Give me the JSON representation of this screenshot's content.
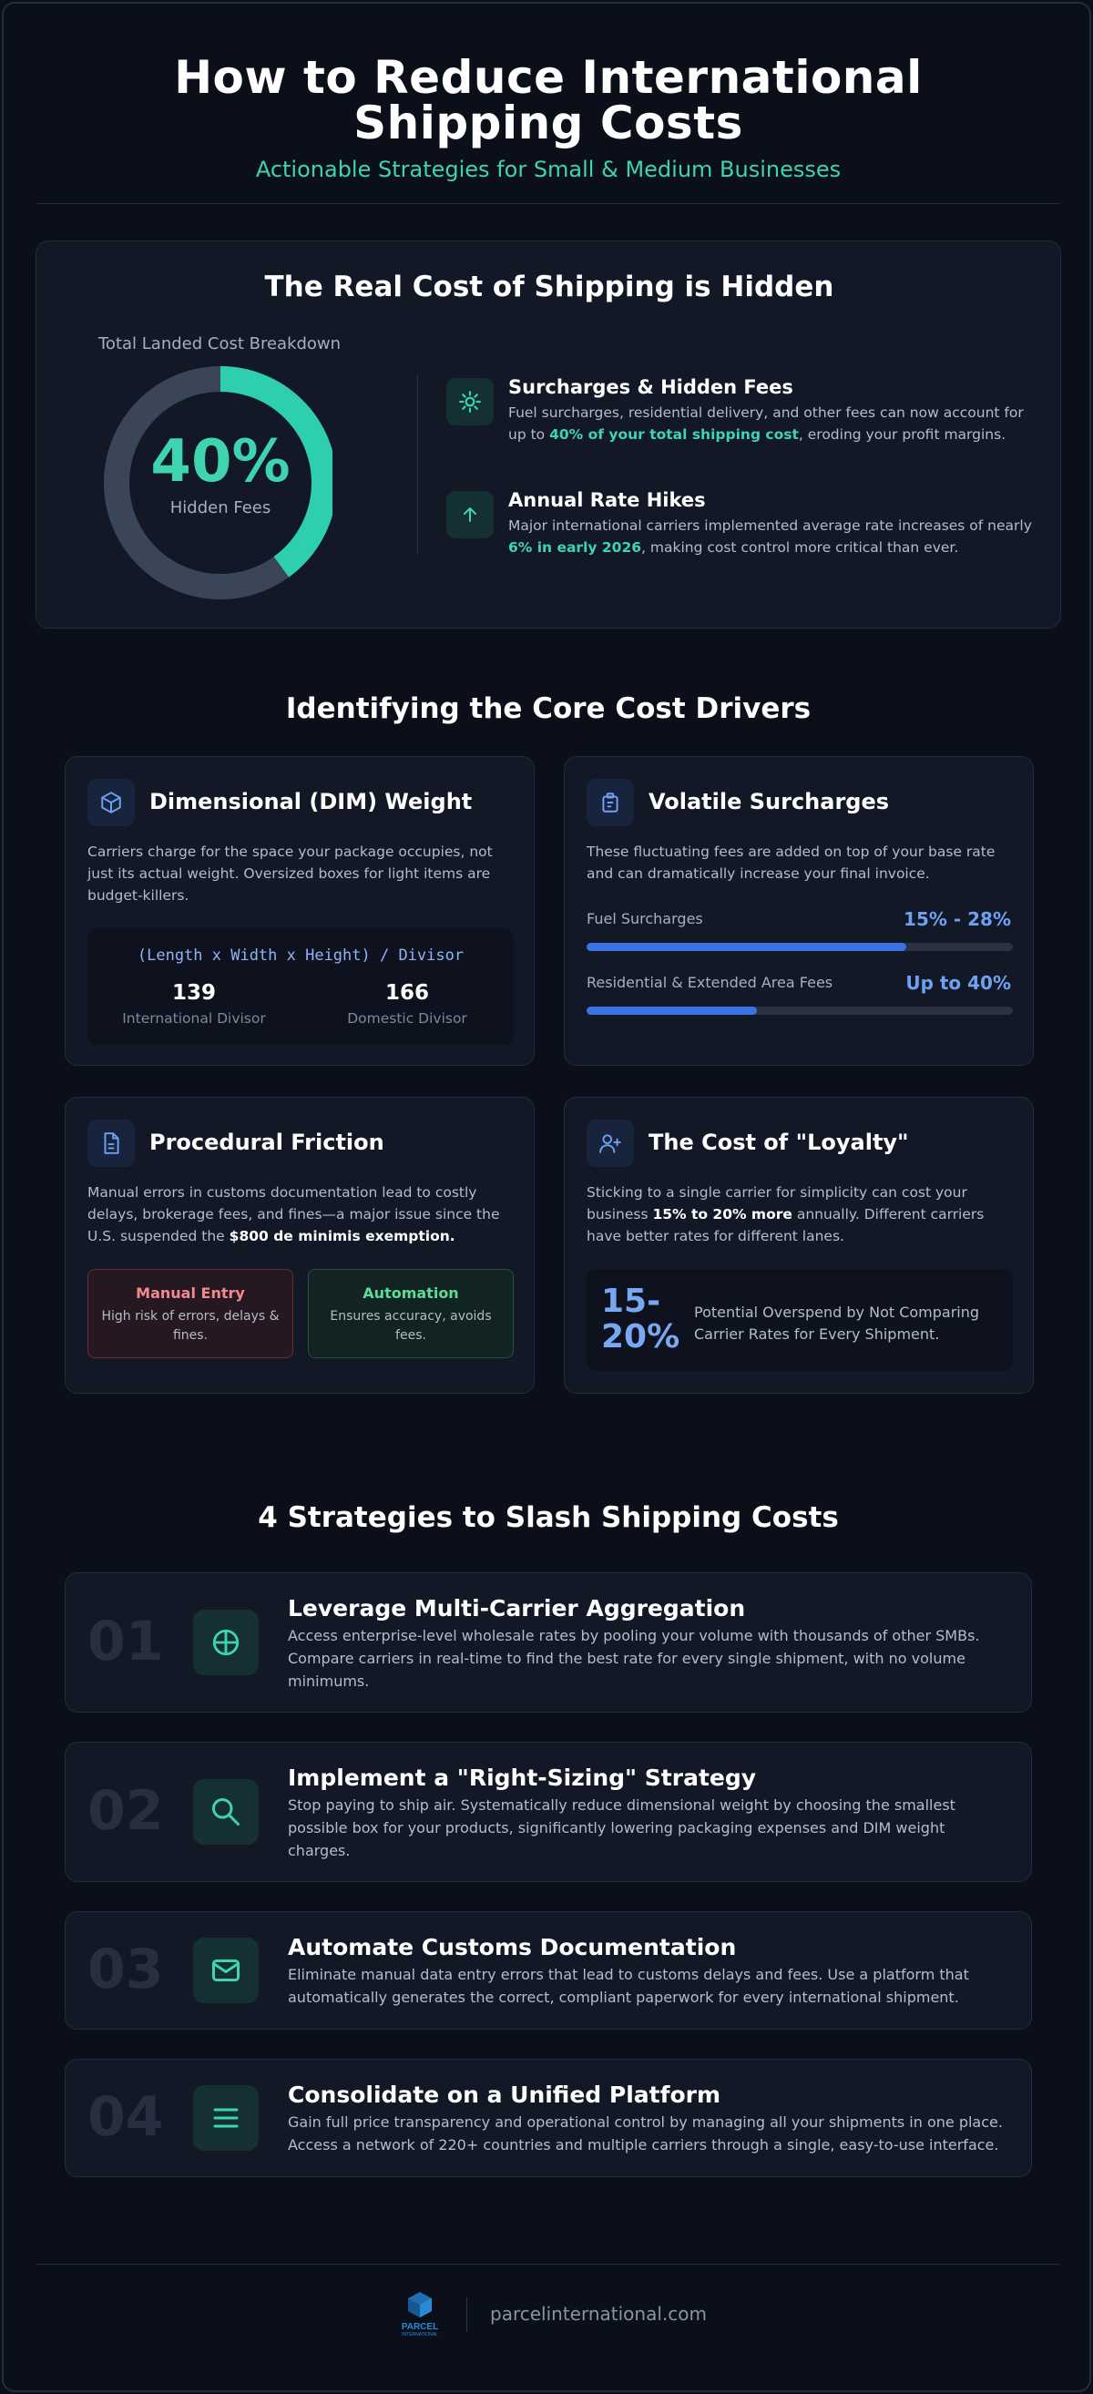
{
  "header": {
    "title": "How to Reduce International Shipping Costs",
    "subtitle": "Actionable Strategies for Small & Medium Businesses"
  },
  "hero": {
    "title": "The Real Cost of Shipping is Hidden",
    "donut_label": "Total Landed Cost Breakdown",
    "donut_value": "40%",
    "donut_fraction": 0.4,
    "donut_caption": "Hidden Fees",
    "features": [
      {
        "icon": "sun-icon",
        "title": "Surcharges & Hidden Fees",
        "text_before": "Fuel surcharges, residential delivery, and other fees can now account for up to ",
        "text_highlight": "40% of your total shipping cost",
        "text_after": ", eroding your profit margins."
      },
      {
        "icon": "arrow-up-icon",
        "title": "Annual Rate Hikes",
        "text_before": "Major international carriers implemented average rate increases of nearly ",
        "text_highlight": "6% in early 2026",
        "text_after": ", making cost control more critical than ever."
      }
    ]
  },
  "drivers": {
    "title": "Identifying the Core Cost Drivers",
    "dim": {
      "title": "Dimensional (DIM) Weight",
      "desc": "Carriers charge for the space your package occupies, not just its actual weight. Oversized boxes for light items are budget-killers.",
      "formula": "(Length x Width x Height) / Divisor",
      "intl_value": "139",
      "intl_label": "International Divisor",
      "dom_value": "166",
      "dom_label": "Domestic Divisor"
    },
    "surcharges": {
      "title": "Volatile Surcharges",
      "desc": "These fluctuating fees are added on top of your base rate and can dramatically increase your final invoice.",
      "bars": [
        {
          "label": "Fuel Surcharges",
          "value": "15% - 28%",
          "fill": 0.75
        },
        {
          "label": "Residential & Extended Area Fees",
          "value": "Up to 40%",
          "fill": 0.4
        }
      ]
    },
    "friction": {
      "title": "Procedural Friction",
      "desc_before": "Manual errors in customs documentation lead to costly delays, brokerage fees, and fines—a major issue since the U.S. suspended the ",
      "desc_bold": "$800 de minimis exemption.",
      "manual_title": "Manual Entry",
      "manual_desc": "High risk of errors, delays & fines.",
      "auto_title": "Automation",
      "auto_desc": "Ensures accuracy, avoids fees."
    },
    "loyalty": {
      "title": "The Cost of \"Loyalty\"",
      "desc_before": "Sticking to a single carrier for simplicity can cost your business ",
      "desc_bold": "15% to 20% more",
      "desc_after": " annually. Different carriers have better rates for different lanes.",
      "big_value": "15-20%",
      "big_text": "Potential Overspend by Not Comparing Carrier Rates for Every Shipment."
    }
  },
  "strategies": {
    "title": "4 Strategies to Slash Shipping Costs",
    "items": [
      {
        "num": "01",
        "icon": "globe-crosshair-icon",
        "title": "Leverage Multi-Carrier Aggregation",
        "text": "Access enterprise-level wholesale rates by pooling your volume with thousands of other SMBs. Compare carriers in real-time to find the best rate for every single shipment, with no volume minimums."
      },
      {
        "num": "02",
        "icon": "search-icon",
        "title": "Implement a \"Right-Sizing\" Strategy",
        "text": "Stop paying to ship air. Systematically reduce dimensional weight by choosing the smallest possible box for your products, significantly lowering packaging expenses and DIM weight charges."
      },
      {
        "num": "03",
        "icon": "mail-icon",
        "title": "Automate Customs Documentation",
        "text": "Eliminate manual data entry errors that lead to customs delays and fees. Use a platform that automatically generates the correct, compliant paperwork for every international shipment."
      },
      {
        "num": "04",
        "icon": "menu-icon",
        "title": "Consolidate on a Unified Platform",
        "text": "Gain full price transparency and operational control by managing all your shipments in one place. Access a network of 220+ countries and multiple carriers through a single, easy-to-use interface."
      }
    ]
  },
  "footer": {
    "logo_text": "PARCEL",
    "logo_subtext": "INTERNATIONAL",
    "url": "parcelinternational.com"
  },
  "colors": {
    "background": "#0b0f19",
    "card": "#121826",
    "accent_teal": "#3fd4b0",
    "accent_blue": "#3b73e6",
    "track": "#3a4558"
  }
}
